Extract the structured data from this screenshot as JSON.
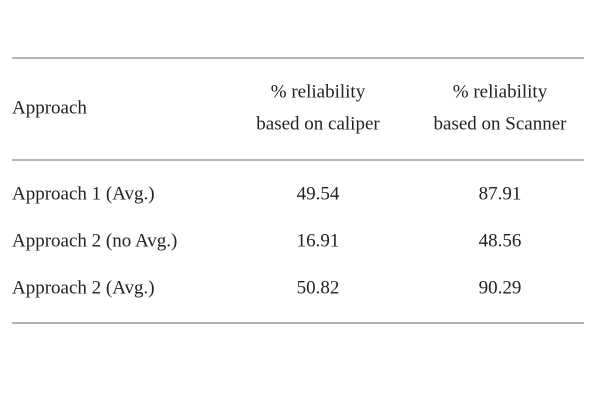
{
  "table": {
    "header": [
      [
        "Approach"
      ],
      [
        "% reliability",
        "based on caliper"
      ],
      [
        "% reliability",
        "based on Scanner"
      ]
    ],
    "rows": [
      [
        "Approach 1 (Avg.)",
        "49.54",
        "87.91"
      ],
      [
        "Approach 2 (no Avg.)",
        "16.91",
        "48.56"
      ],
      [
        "Approach 2 (Avg.)",
        "50.82",
        "90.29"
      ]
    ]
  }
}
